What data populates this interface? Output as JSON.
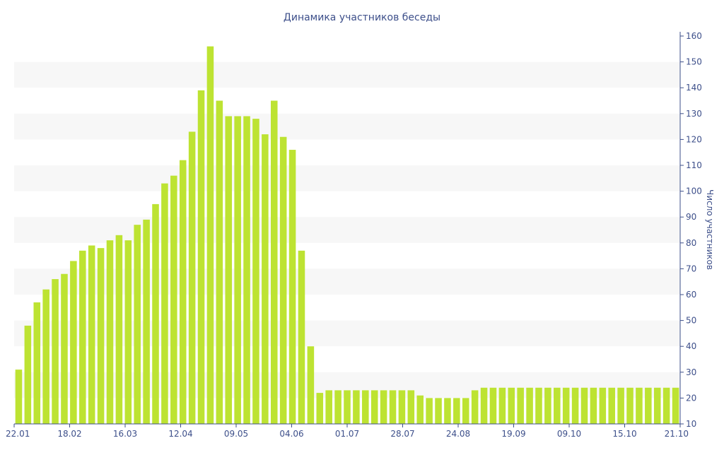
{
  "chart_data": {
    "type": "bar",
    "title": "Динамика участников беседы",
    "ylabel": "Число участников",
    "xlabel": "",
    "ylim": [
      10,
      160
    ],
    "yticks": [
      10,
      20,
      30,
      40,
      50,
      60,
      70,
      80,
      90,
      100,
      110,
      120,
      130,
      140,
      150,
      160
    ],
    "xtick_labels": [
      "22.01",
      "18.02",
      "16.03",
      "12.04",
      "09.05",
      "04.06",
      "01.07",
      "28.07",
      "24.08",
      "19.09",
      "09.10",
      "15.10",
      "21.10"
    ],
    "bar_color": "#bde332",
    "alternate_band_color": "#f7f7f7",
    "axis_color": "#3d4f8a",
    "y_axis_position": "right",
    "grid": "alternating horizontal bands",
    "values": [
      31,
      48,
      57,
      62,
      66,
      68,
      73,
      77,
      79,
      78,
      81,
      83,
      81,
      87,
      89,
      95,
      103,
      106,
      112,
      123,
      139,
      156,
      135,
      129,
      129,
      129,
      128,
      122,
      135,
      121,
      116,
      77,
      40,
      22,
      23,
      23,
      23,
      23,
      23,
      23,
      23,
      23,
      23,
      23,
      21,
      20,
      20,
      20,
      20,
      20,
      23,
      24,
      24,
      24,
      24,
      24,
      24,
      24,
      24,
      24,
      24,
      24,
      24,
      24,
      24,
      24,
      24,
      24,
      24,
      24,
      24,
      24,
      24
    ]
  }
}
